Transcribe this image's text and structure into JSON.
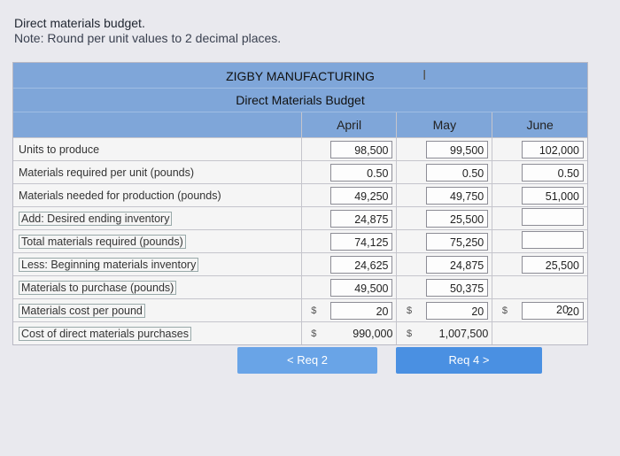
{
  "prompt": {
    "line1": "Direct materials budget.",
    "line2": "Note: Round per unit values to 2 decimal places."
  },
  "budget": {
    "company": "ZIGBY MANUFACTURING",
    "title": "Direct Materials Budget",
    "months": [
      "April",
      "May",
      "June"
    ],
    "rows": [
      {
        "label": "Units to produce",
        "april": "98,500",
        "may": "99,500",
        "june": "102,000"
      },
      {
        "label": "Materials required per unit (pounds)",
        "april": "0.50",
        "may": "0.50",
        "june": "0.50"
      },
      {
        "label": "Materials needed for production (pounds)",
        "april": "49,250",
        "may": "49,750",
        "june": "51,000"
      },
      {
        "label": "Add: Desired ending inventory",
        "april": "24,875",
        "may": "25,500",
        "june": ""
      },
      {
        "label": "Total materials required (pounds)",
        "april": "74,125",
        "may": "75,250",
        "june": ""
      },
      {
        "label": "Less: Beginning materials inventory",
        "april": "24,625",
        "may": "24,875",
        "june": "25,500"
      },
      {
        "label": "Materials to purchase (pounds)",
        "april": "49,500",
        "may": "50,375",
        "june": ""
      },
      {
        "label": "Materials cost per pound",
        "april": "20",
        "may": "20",
        "june": "20",
        "extra": "20",
        "currency": "$"
      },
      {
        "label": "Cost of direct materials purchases",
        "april": "990,000",
        "may": "1,007,500",
        "june": "",
        "currency": "$"
      }
    ]
  },
  "nav": {
    "prev_label": "Req 2",
    "next_label": "Req 4"
  }
}
